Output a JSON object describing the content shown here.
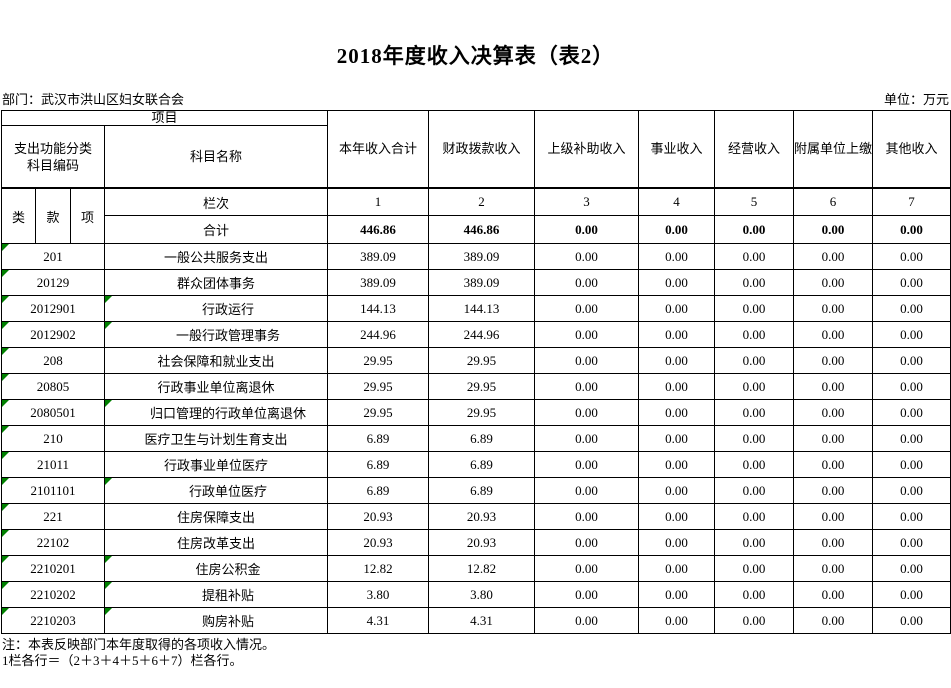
{
  "page": {
    "title": "2018年度收入决算表（表2）",
    "department": "部门：武汉市洪山区妇女联合会",
    "unit": "单位：万元",
    "notes": [
      "注：本表反映部门本年度取得的各项收入情况。",
      "1栏各行＝（2＋3＋4＋5＋6＋7）栏各行。"
    ]
  },
  "table": {
    "header": {
      "project": "项目",
      "code_group_line1": "支出功能分类",
      "code_group_line2": "科目编码",
      "subject_name": "科目名称",
      "code_cols": [
        "类",
        "款",
        "项"
      ],
      "index_label": "栏次",
      "total_label": "合计",
      "money_columns": [
        {
          "label": "本年收入合计",
          "index": "1"
        },
        {
          "label": "财政拨款收入",
          "index": "2"
        },
        {
          "label": "上级补助收入",
          "index": "3"
        },
        {
          "label": "事业收入",
          "index": "4"
        },
        {
          "label": "经营收入",
          "index": "5"
        },
        {
          "label": "附属单位上缴收入",
          "index": "6"
        },
        {
          "label": "其他收入",
          "index": "7"
        }
      ]
    },
    "total_row": {
      "values": [
        "446.86",
        "446.86",
        "0.00",
        "0.00",
        "0.00",
        "0.00",
        "0.00"
      ]
    },
    "rows": [
      {
        "code": "201",
        "name": "一般公共服务支出",
        "indent": 0,
        "code_marker": true,
        "name_marker": false,
        "values": [
          "389.09",
          "389.09",
          "0.00",
          "0.00",
          "0.00",
          "0.00",
          "0.00"
        ]
      },
      {
        "code": "20129",
        "name": "群众团体事务",
        "indent": 0,
        "code_marker": true,
        "name_marker": false,
        "values": [
          "389.09",
          "389.09",
          "0.00",
          "0.00",
          "0.00",
          "0.00",
          "0.00"
        ]
      },
      {
        "code": "2012901",
        "name": "行政运行",
        "indent": 1,
        "code_marker": true,
        "name_marker": true,
        "values": [
          "144.13",
          "144.13",
          "0.00",
          "0.00",
          "0.00",
          "0.00",
          "0.00"
        ]
      },
      {
        "code": "2012902",
        "name": "一般行政管理事务",
        "indent": 1,
        "code_marker": true,
        "name_marker": true,
        "values": [
          "244.96",
          "244.96",
          "0.00",
          "0.00",
          "0.00",
          "0.00",
          "0.00"
        ]
      },
      {
        "code": "208",
        "name": "社会保障和就业支出",
        "indent": 0,
        "code_marker": true,
        "name_marker": false,
        "values": [
          "29.95",
          "29.95",
          "0.00",
          "0.00",
          "0.00",
          "0.00",
          "0.00"
        ]
      },
      {
        "code": "20805",
        "name": "行政事业单位离退休",
        "indent": 0,
        "code_marker": true,
        "name_marker": false,
        "values": [
          "29.95",
          "29.95",
          "0.00",
          "0.00",
          "0.00",
          "0.00",
          "0.00"
        ]
      },
      {
        "code": "2080501",
        "name": "归口管理的行政单位离退休",
        "indent": 1,
        "code_marker": true,
        "name_marker": true,
        "values": [
          "29.95",
          "29.95",
          "0.00",
          "0.00",
          "0.00",
          "0.00",
          "0.00"
        ]
      },
      {
        "code": "210",
        "name": "医疗卫生与计划生育支出",
        "indent": 0,
        "code_marker": true,
        "name_marker": false,
        "values": [
          "6.89",
          "6.89",
          "0.00",
          "0.00",
          "0.00",
          "0.00",
          "0.00"
        ]
      },
      {
        "code": "21011",
        "name": "行政事业单位医疗",
        "indent": 0,
        "code_marker": true,
        "name_marker": false,
        "values": [
          "6.89",
          "6.89",
          "0.00",
          "0.00",
          "0.00",
          "0.00",
          "0.00"
        ]
      },
      {
        "code": "2101101",
        "name": "行政单位医疗",
        "indent": 1,
        "code_marker": true,
        "name_marker": true,
        "values": [
          "6.89",
          "6.89",
          "0.00",
          "0.00",
          "0.00",
          "0.00",
          "0.00"
        ]
      },
      {
        "code": "221",
        "name": "住房保障支出",
        "indent": 0,
        "code_marker": true,
        "name_marker": false,
        "values": [
          "20.93",
          "20.93",
          "0.00",
          "0.00",
          "0.00",
          "0.00",
          "0.00"
        ]
      },
      {
        "code": "22102",
        "name": "住房改革支出",
        "indent": 0,
        "code_marker": true,
        "name_marker": false,
        "values": [
          "20.93",
          "20.93",
          "0.00",
          "0.00",
          "0.00",
          "0.00",
          "0.00"
        ]
      },
      {
        "code": "2210201",
        "name": "住房公积金",
        "indent": 1,
        "code_marker": true,
        "name_marker": true,
        "values": [
          "12.82",
          "12.82",
          "0.00",
          "0.00",
          "0.00",
          "0.00",
          "0.00"
        ]
      },
      {
        "code": "2210202",
        "name": "提租补贴",
        "indent": 1,
        "code_marker": true,
        "name_marker": true,
        "values": [
          "3.80",
          "3.80",
          "0.00",
          "0.00",
          "0.00",
          "0.00",
          "0.00"
        ]
      },
      {
        "code": "2210203",
        "name": "购房补贴",
        "indent": 1,
        "code_marker": true,
        "name_marker": true,
        "values": [
          "4.31",
          "4.31",
          "0.00",
          "0.00",
          "0.00",
          "0.00",
          "0.00"
        ]
      }
    ]
  },
  "colors": {
    "marker_green": "#008000",
    "border": "#000000",
    "text": "#000000",
    "background": "#ffffff"
  }
}
